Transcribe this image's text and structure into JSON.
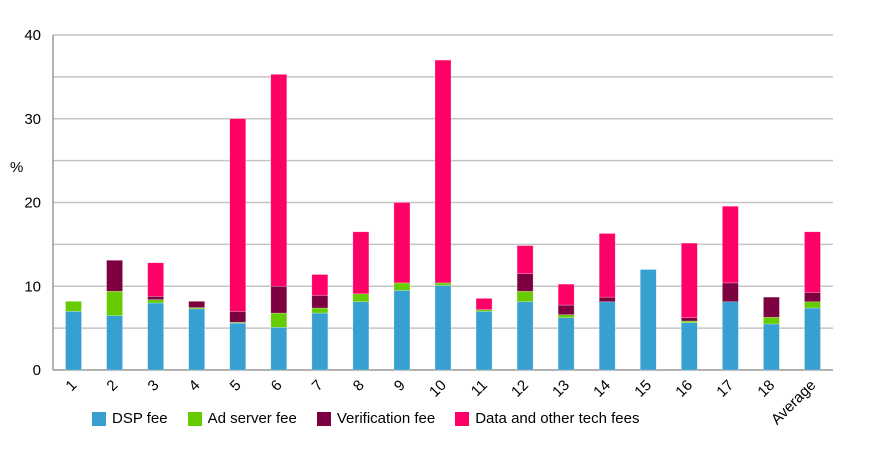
{
  "chart_data": {
    "type": "bar",
    "stacked": true,
    "title": "",
    "xlabel": "",
    "ylabel": "%",
    "ylim": [
      0,
      40
    ],
    "yticks": [
      0,
      10,
      20,
      30,
      40
    ],
    "grid": true,
    "legend_position": "bottom",
    "categories": [
      "1",
      "2",
      "3",
      "4",
      "5",
      "6",
      "7",
      "8",
      "9",
      "10",
      "11",
      "12",
      "13",
      "14",
      "15",
      "16",
      "17",
      "18",
      "Average"
    ],
    "series": [
      {
        "name": "DSP fee",
        "color": "#38a0d0",
        "values": [
          7.0,
          6.5,
          8.0,
          7.3,
          5.6,
          5.1,
          6.8,
          8.15,
          9.5,
          10.1,
          7.0,
          8.15,
          6.25,
          8.15,
          12.0,
          5.65,
          8.15,
          5.5,
          7.4
        ]
      },
      {
        "name": "Ad server fee",
        "color": "#66cc00",
        "values": [
          1.2,
          2.9,
          0.4,
          0.15,
          0.1,
          1.7,
          0.6,
          0.95,
          0.9,
          0.3,
          0.2,
          1.25,
          0.35,
          0,
          0,
          0.2,
          0,
          0.8,
          0.75
        ]
      },
      {
        "name": "Verification fee",
        "color": "#7d0040",
        "values": [
          0,
          3.7,
          0.4,
          0.75,
          1.3,
          3.2,
          1.5,
          0,
          0,
          0,
          0,
          2.1,
          1.15,
          0.55,
          0,
          0.4,
          2.25,
          2.4,
          1.1
        ]
      },
      {
        "name": "Data and other tech fees",
        "color": "#ff0066",
        "values": [
          0,
          0,
          4.0,
          0,
          23.0,
          25.3,
          2.5,
          7.4,
          9.6,
          26.6,
          1.35,
          3.35,
          2.5,
          7.6,
          0,
          8.9,
          9.15,
          0,
          7.25
        ]
      }
    ]
  }
}
